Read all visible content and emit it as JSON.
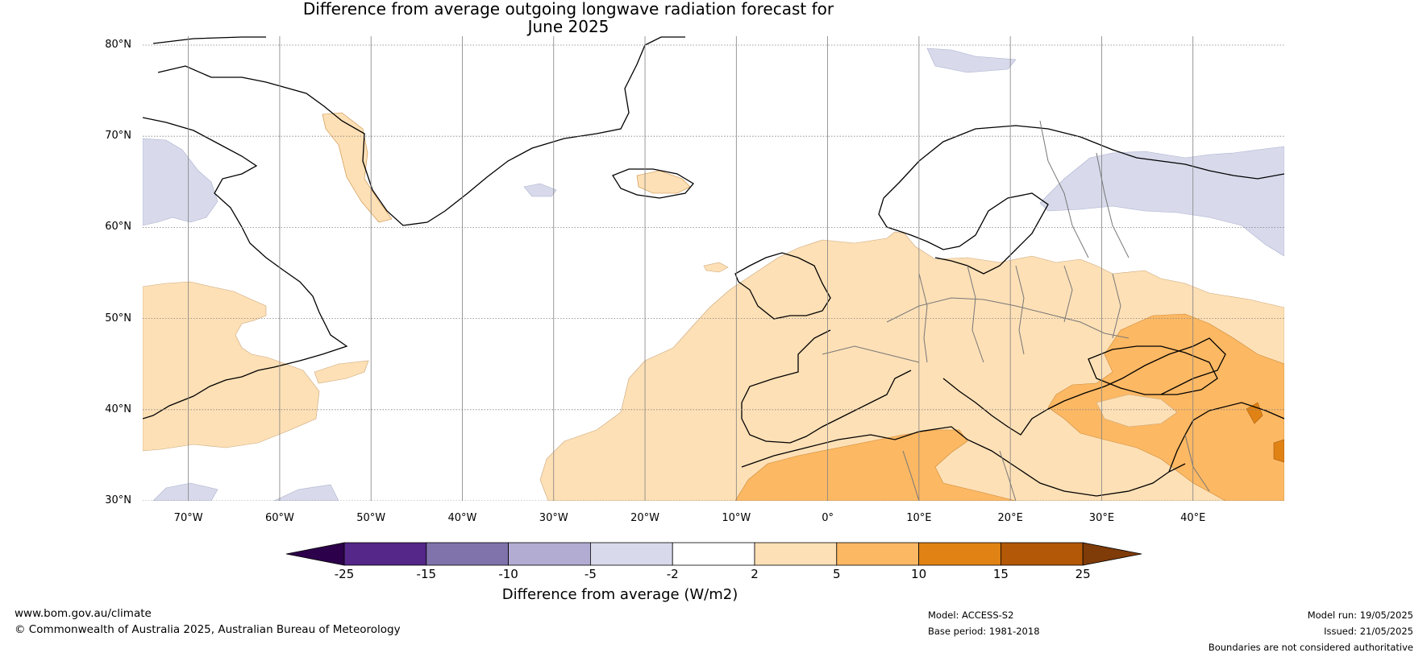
{
  "title": {
    "line1": "Difference from average outgoing longwave radiation forecast for",
    "line2": "June 2025"
  },
  "map": {
    "latitude_labels": [
      "80°N",
      "70°N",
      "60°N",
      "50°N",
      "40°N",
      "30°N"
    ],
    "longitude_labels": [
      "70°W",
      "60°W",
      "50°W",
      "40°W",
      "30°W",
      "20°W",
      "10°W",
      "0°",
      "10°E",
      "20°E",
      "30°E",
      "40°E"
    ],
    "extent": {
      "lon_min": -75,
      "lon_max": 50,
      "lat_min": 30,
      "lat_max": 81
    }
  },
  "colorbar": {
    "label": "Difference from average (W/m2)",
    "ticks": [
      "-25",
      "-15",
      "-10",
      "-5",
      "-2",
      "2",
      "5",
      "10",
      "15",
      "25"
    ],
    "colors": {
      "under": "#2d004b",
      "bins": [
        "#542788",
        "#8073ac",
        "#b2abd2",
        "#d8daeb",
        "#ffffff",
        "#fee0b6",
        "#fdb863",
        "#e08214",
        "#b35806"
      ],
      "over": "#7f3b08"
    }
  },
  "footer": {
    "website": "www.bom.gov.au/climate",
    "copyright": "© Commonwealth of Australia 2025, Australian Bureau of Meteorology",
    "model": "Model: ACCESS-S2",
    "base_period": "Base period: 1981-2018",
    "model_run": "Model run: 19/05/2025",
    "issued": "Issued: 21/05/2025",
    "disclaimer": "Boundaries are not considered authoritative"
  }
}
